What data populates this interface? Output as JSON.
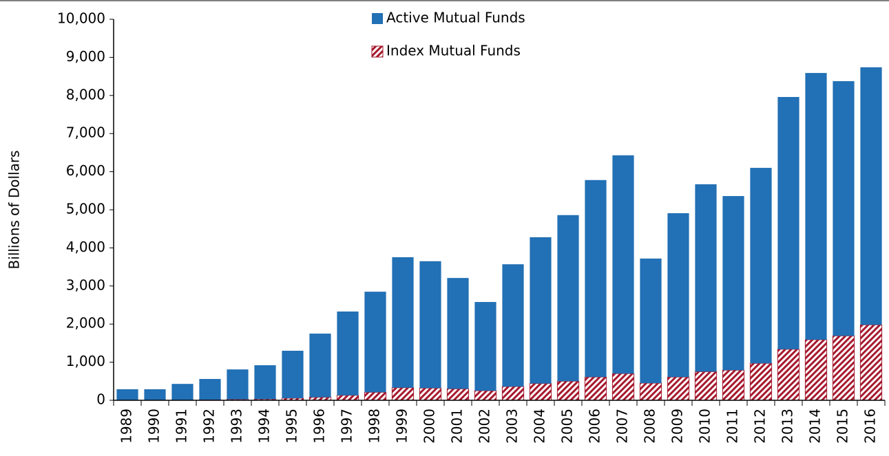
{
  "chart_data": {
    "type": "stacked_bar",
    "y_label": "Billions of Dollars",
    "categories": [
      "1989",
      "1990",
      "1991",
      "1992",
      "1993",
      "1994",
      "1995",
      "1996",
      "1997",
      "1998",
      "1999",
      "2000",
      "2001",
      "2002",
      "2003",
      "2004",
      "2005",
      "2006",
      "2007",
      "2008",
      "2009",
      "2010",
      "2011",
      "2012",
      "2013",
      "2014",
      "2015",
      "2016"
    ],
    "series": [
      {
        "name": "Active Mutual Funds",
        "color": "#2270b5",
        "pattern": "solid",
        "values": [
          285,
          285,
          420,
          545,
          785,
          890,
          1245,
          1670,
          2200,
          2640,
          3425,
          3330,
          2910,
          2330,
          3210,
          3840,
          4360,
          5170,
          5730,
          3270,
          4300,
          4920,
          4570,
          5130,
          6620,
          7000,
          6685,
          6760
        ]
      },
      {
        "name": "Index Mutual Funds",
        "color": "#a6192e",
        "pattern": "hatch",
        "values": [
          5,
          5,
          10,
          15,
          25,
          30,
          55,
          80,
          130,
          210,
          330,
          320,
          300,
          250,
          360,
          440,
          500,
          610,
          700,
          450,
          610,
          750,
          790,
          970,
          1340,
          1590,
          1690,
          1980
        ]
      }
    ],
    "stack_order": "reverse",
    "ylim": [
      0,
      10000
    ],
    "yticks": [
      0,
      {
        "value": 1000,
        "label": "1,000"
      },
      {
        "value": 2000,
        "label": "2,000"
      },
      {
        "value": 3000,
        "label": "3,000"
      },
      {
        "value": 4000,
        "label": "4,000"
      },
      {
        "value": 5000,
        "label": "5,000"
      },
      {
        "value": 6000,
        "label": "6,000"
      },
      {
        "value": 7000,
        "label": "7,000"
      },
      {
        "value": 8000,
        "label": "8,000"
      },
      {
        "value": 9000,
        "label": "9,000"
      },
      {
        "value": 10000,
        "label": "10,000"
      }
    ],
    "grid": false,
    "legend": "top"
  }
}
